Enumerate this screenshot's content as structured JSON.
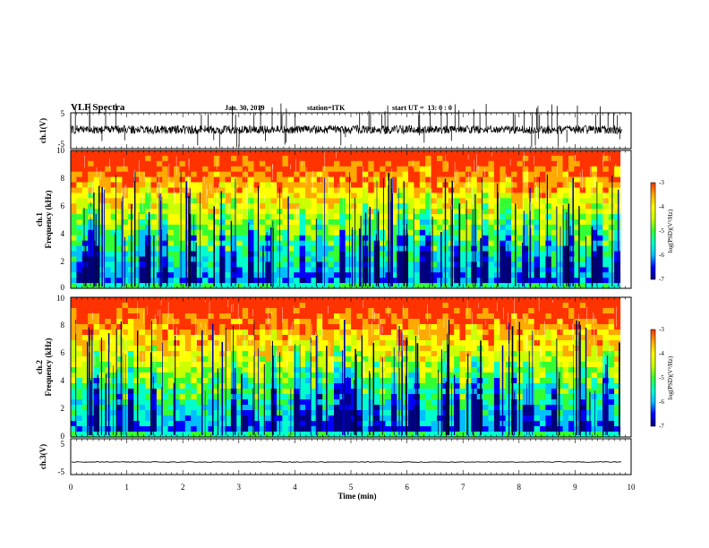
{
  "header": {
    "title": "VLF Spectra",
    "date": "Jan. 30, 2019",
    "station": "station=ITK",
    "start_ut": "start UT =  13: 0 : 0"
  },
  "colors": {
    "spectrogram_scale": [
      "#00007f",
      "#0000ff",
      "#00bfff",
      "#00ffcc",
      "#33ff33",
      "#ccff00",
      "#ffff00",
      "#ffaa00",
      "#ff3300"
    ],
    "trace": "#000000",
    "background": "#ffffff"
  },
  "chart_data": [
    {
      "type": "line",
      "panel": "ch1-waveform",
      "ylabel": "ch.1(V)",
      "ylim": [
        -5,
        5
      ],
      "yticks": [
        "5",
        "-5"
      ],
      "baseline": 0.3,
      "noise_amplitude": 1.2,
      "xlim": [
        0,
        10
      ]
    },
    {
      "type": "heatmap",
      "panel": "ch1-spectrogram",
      "ylabel": "ch.1",
      "ylabel2": "Frequency (kHz)",
      "ylim": [
        0,
        10
      ],
      "yticks": [
        "0",
        "2",
        "4",
        "6",
        "8",
        "10"
      ],
      "xlim": [
        0,
        10
      ],
      "data_end_min": 9.8,
      "colorbar": {
        "label": "log(PSD)(V²/Hz)",
        "range": [
          -7,
          -3
        ],
        "ticks": [
          "-3",
          "-4",
          "-5",
          "-6",
          "-7"
        ]
      }
    },
    {
      "type": "heatmap",
      "panel": "ch2-spectrogram",
      "ylabel": "ch.2",
      "ylabel2": "Frequency (kHz)",
      "ylim": [
        0,
        10
      ],
      "yticks": [
        "0",
        "2",
        "4",
        "6",
        "8",
        "10"
      ],
      "xlim": [
        0,
        10
      ],
      "data_end_min": 9.8,
      "colorbar": {
        "label": "log(PSD)(V²/Hz)",
        "range": [
          -7,
          -3
        ],
        "ticks": [
          "-3",
          "-4",
          "-5",
          "-6",
          "-7"
        ]
      }
    },
    {
      "type": "line",
      "panel": "ch3-waveform",
      "ylabel": "ch.3(V)",
      "ylim": [
        -5,
        5
      ],
      "yticks": [
        "5",
        "-5"
      ],
      "baseline": -1.5,
      "noise_amplitude": 0.1,
      "xlim": [
        0,
        10
      ]
    }
  ],
  "x_axis": {
    "label": "Time (min)",
    "ticks": [
      "0",
      "1",
      "2",
      "3",
      "4",
      "5",
      "6",
      "7",
      "8",
      "9",
      "10"
    ]
  }
}
